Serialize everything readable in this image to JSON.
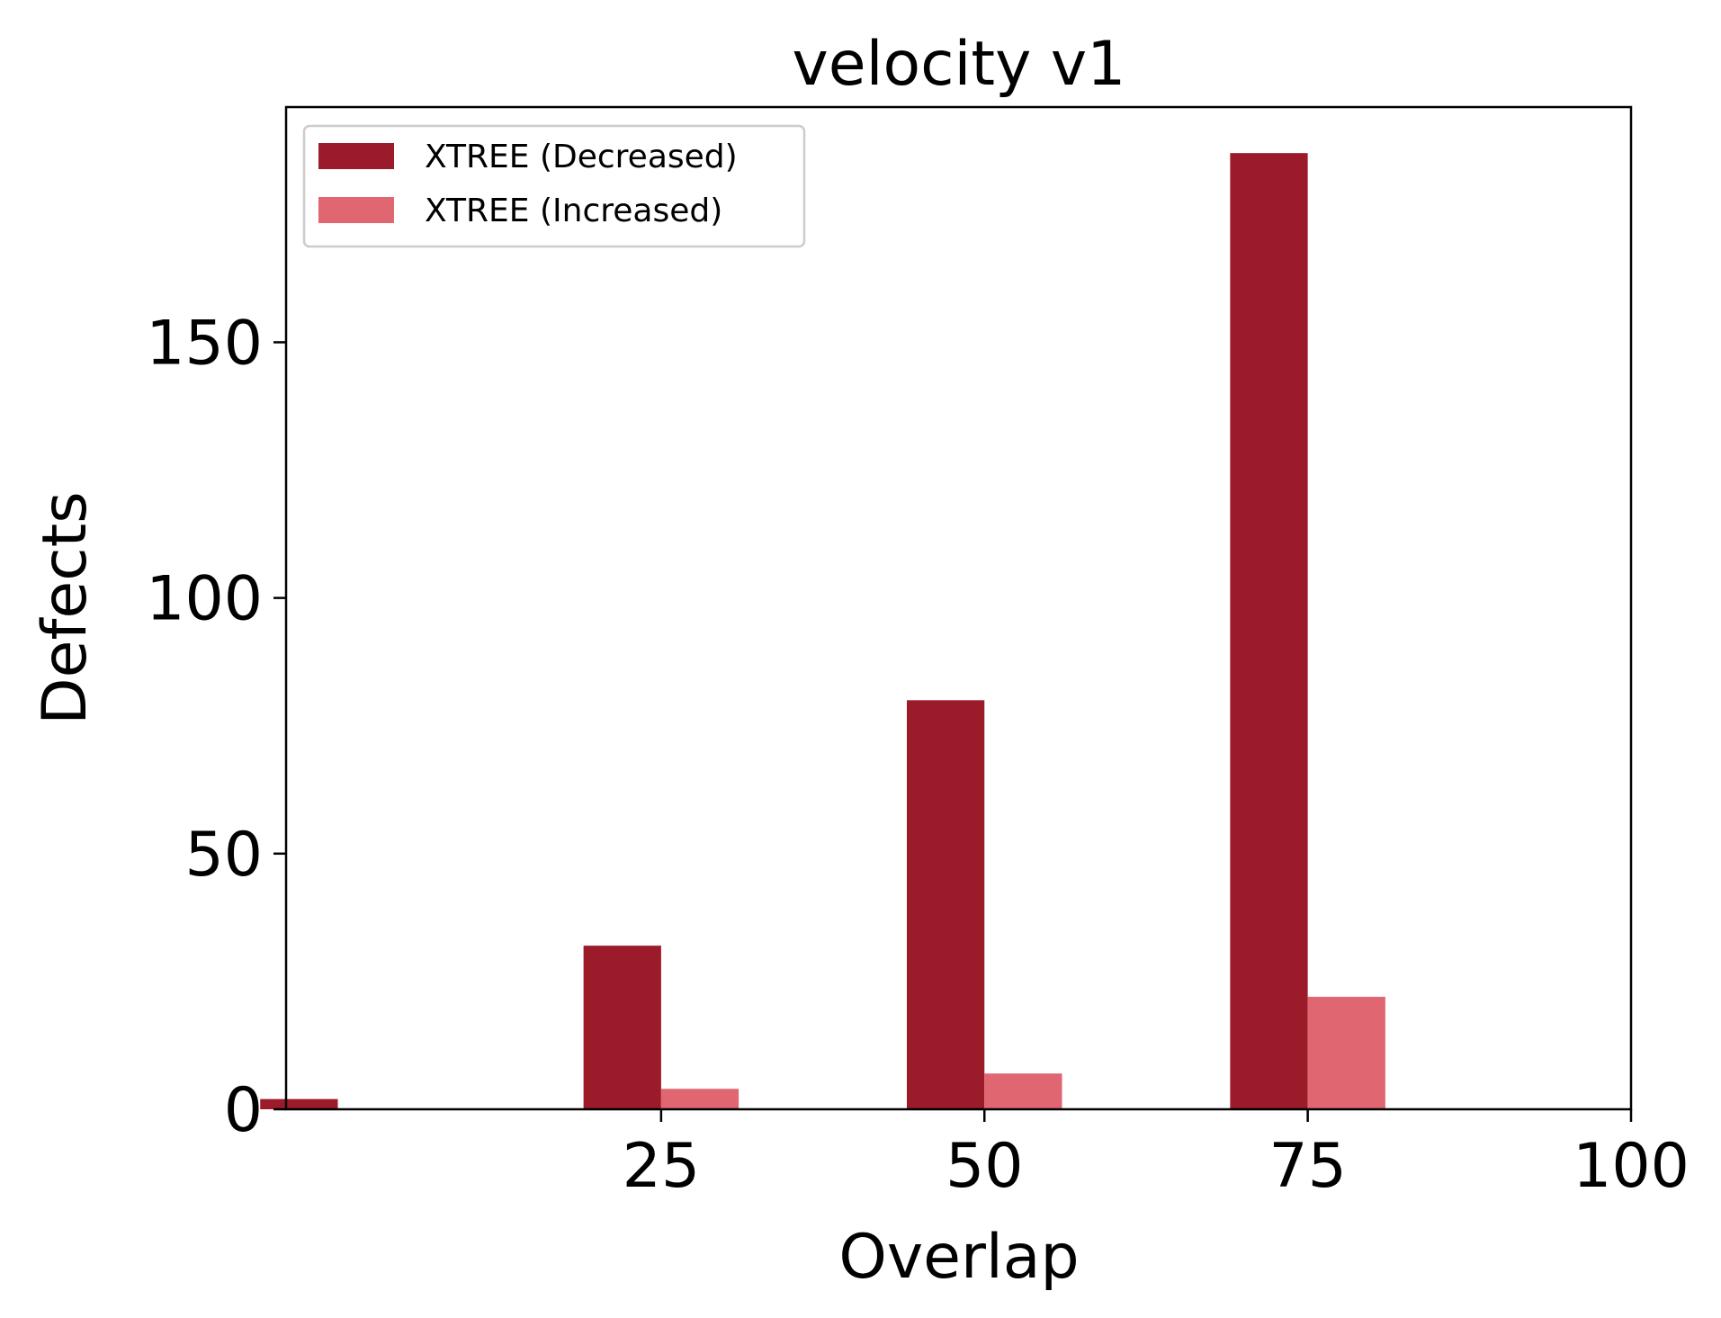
{
  "chart_data": {
    "type": "bar",
    "title": "velocity v1",
    "xlabel": "Overlap",
    "ylabel": "Defects",
    "categories": [
      "0",
      "25",
      "50",
      "75"
    ],
    "x": [
      0,
      25,
      50,
      75
    ],
    "xlim": [
      -4,
      100
    ],
    "ylim": [
      0,
      196
    ],
    "xticks": [
      25,
      50,
      75,
      100
    ],
    "yticks": [
      0,
      50,
      100,
      150
    ],
    "grid": false,
    "legend_position": "top-left",
    "series": [
      {
        "name": "XTREE (Decreased)",
        "color": "#9b1b2a",
        "values": [
          2,
          32,
          80,
          187
        ]
      },
      {
        "name": "XTREE (Increased)",
        "color": "#e06672",
        "values": [
          0,
          4,
          7,
          22
        ]
      }
    ]
  }
}
